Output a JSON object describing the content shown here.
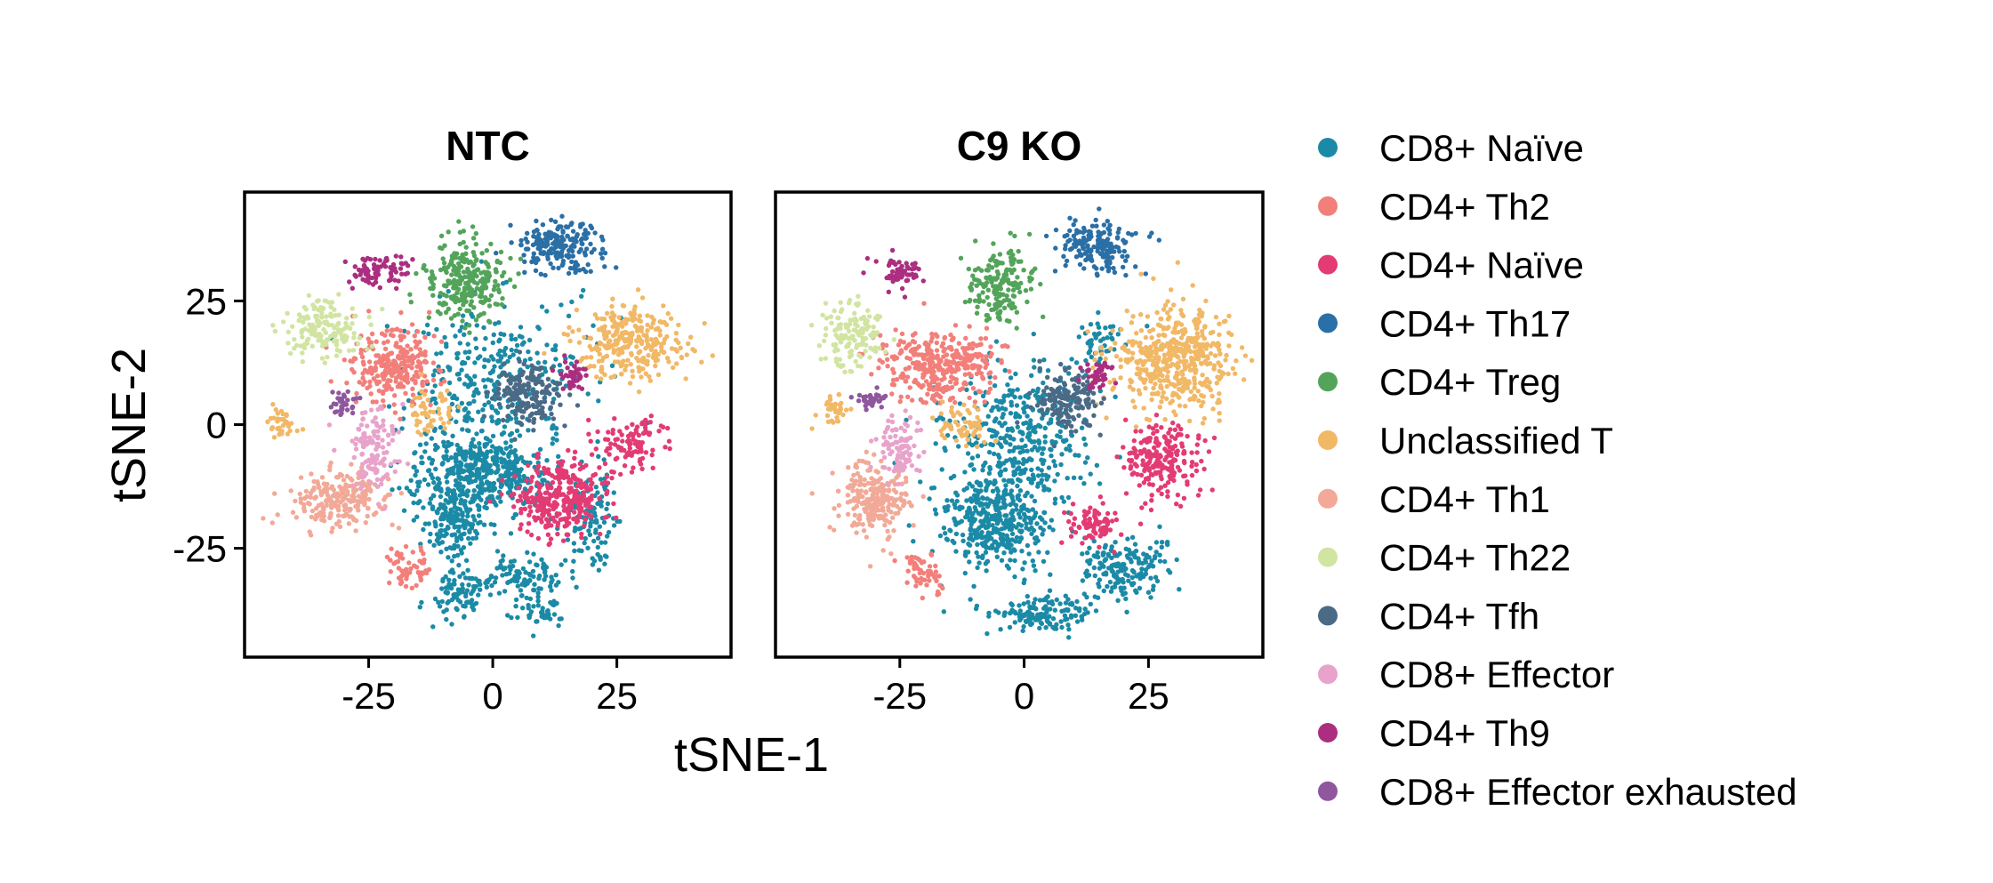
{
  "chart_data": {
    "type": "scatter",
    "xlabel": "tSNE-1",
    "ylabel": "tSNE-2",
    "xlim": [
      -50,
      48
    ],
    "ylim": [
      -47,
      47
    ],
    "xticks": [
      -25,
      0,
      25
    ],
    "yticks": [
      25,
      0,
      -25
    ],
    "xtick_labels": [
      "-25",
      "0",
      "25"
    ],
    "ytick_labels": [
      "25",
      "0",
      "-25"
    ],
    "legend_position": "right",
    "panels": [
      {
        "title": "NTC",
        "clusters": [
          {
            "type": "CD8+ Naïve",
            "center": [
              -3,
              -10
            ],
            "spread": [
              9,
              6
            ],
            "density": 1.0
          },
          {
            "type": "CD8+ Naïve",
            "center": [
              -8,
              -20
            ],
            "spread": [
              4,
              5
            ],
            "density": 0.6
          },
          {
            "type": "CD8+ Naïve",
            "center": [
              -7,
              -34
            ],
            "spread": [
              4,
              3
            ],
            "density": 0.5
          },
          {
            "type": "CD8+ Naïve",
            "center": [
              6,
              -31
            ],
            "spread": [
              5,
              3
            ],
            "density": 0.5
          },
          {
            "type": "CD8+ Naïve",
            "center": [
              10,
              -38
            ],
            "spread": [
              3,
              2
            ],
            "density": 0.3
          },
          {
            "type": "CD8+ Naïve",
            "center": [
              20,
              -20
            ],
            "spread": [
              3,
              7
            ],
            "density": 0.4
          },
          {
            "type": "CD8+ Naïve",
            "center": [
              0,
              10
            ],
            "spread": [
              12,
              10
            ],
            "density": 0.25
          },
          {
            "type": "CD4+ Th2",
            "center": [
              -20,
              12
            ],
            "spread": [
              6,
              5
            ],
            "density": 0.9
          },
          {
            "type": "CD4+ Th2",
            "center": [
              -17,
              -29
            ],
            "spread": [
              3,
              3
            ],
            "density": 0.3
          },
          {
            "type": "CD4+ Naïve",
            "center": [
              14,
              -15
            ],
            "spread": [
              6,
              5
            ],
            "density": 1.0
          },
          {
            "type": "CD4+ Naïve",
            "center": [
              28,
              -4
            ],
            "spread": [
              5,
              4
            ],
            "density": 0.4
          },
          {
            "type": "CD4+ Th17",
            "center": [
              13,
              36
            ],
            "spread": [
              6,
              3.5
            ],
            "density": 0.9
          },
          {
            "type": "CD4+ Treg",
            "center": [
              -5,
              29
            ],
            "spread": [
              5,
              5
            ],
            "density": 1.0
          },
          {
            "type": "Unclassified T",
            "center": [
              28,
              17
            ],
            "spread": [
              7,
              5
            ],
            "density": 0.8
          },
          {
            "type": "Unclassified T",
            "center": [
              -12,
              3
            ],
            "spread": [
              3,
              3
            ],
            "density": 0.3
          },
          {
            "type": "Unclassified T",
            "center": [
              -42,
              0
            ],
            "spread": [
              2,
              2
            ],
            "density": 0.15
          },
          {
            "type": "CD4+ Th1",
            "center": [
              -31,
              -15
            ],
            "spread": [
              6,
              4
            ],
            "density": 0.9
          },
          {
            "type": "CD4+ Th22",
            "center": [
              -34,
              19
            ],
            "spread": [
              5,
              4
            ],
            "density": 0.7
          },
          {
            "type": "CD4+ Tfh",
            "center": [
              7,
              6
            ],
            "spread": [
              5,
              4
            ],
            "density": 0.8
          },
          {
            "type": "CD8+ Effector",
            "center": [
              -24,
              -5
            ],
            "spread": [
              3,
              6
            ],
            "density": 0.6
          },
          {
            "type": "CD4+ Th9",
            "center": [
              -23,
              31
            ],
            "spread": [
              4,
              2
            ],
            "density": 0.7
          },
          {
            "type": "CD4+ Th9",
            "center": [
              16,
              10
            ],
            "spread": [
              2,
              2
            ],
            "density": 0.3
          },
          {
            "type": "CD8+ Effector exhausted",
            "center": [
              -30,
              4
            ],
            "spread": [
              2,
              1.5
            ],
            "density": 0.2
          }
        ]
      },
      {
        "title": "C9  KO",
        "clusters": [
          {
            "type": "CD8+ Naïve",
            "center": [
              -6,
              -20
            ],
            "spread": [
              7,
              6
            ],
            "density": 0.9
          },
          {
            "type": "CD8+ Naïve",
            "center": [
              3,
              -38
            ],
            "spread": [
              7,
              2.5
            ],
            "density": 0.7
          },
          {
            "type": "CD8+ Naïve",
            "center": [
              20,
              -29
            ],
            "spread": [
              6,
              4
            ],
            "density": 0.7
          },
          {
            "type": "CD8+ Naïve",
            "center": [
              -1,
              -3
            ],
            "spread": [
              10,
              10
            ],
            "density": 0.4
          },
          {
            "type": "CD8+ Naïve",
            "center": [
              15,
              17
            ],
            "spread": [
              3,
              3
            ],
            "density": 0.2
          },
          {
            "type": "CD4+ Th2",
            "center": [
              -17,
              12
            ],
            "spread": [
              8,
              5
            ],
            "density": 0.9
          },
          {
            "type": "CD4+ Th2",
            "center": [
              -20,
              -30
            ],
            "spread": [
              3,
              3
            ],
            "density": 0.3
          },
          {
            "type": "CD4+ Naïve",
            "center": [
              28,
              -7
            ],
            "spread": [
              5,
              5
            ],
            "density": 0.8
          },
          {
            "type": "CD4+ Naïve",
            "center": [
              14,
              -20
            ],
            "spread": [
              4,
              3
            ],
            "density": 0.5
          },
          {
            "type": "CD4+ Th17",
            "center": [
              14,
              36
            ],
            "spread": [
              5,
              4
            ],
            "density": 0.8
          },
          {
            "type": "CD4+ Treg",
            "center": [
              -5,
              28
            ],
            "spread": [
              4,
              5
            ],
            "density": 0.8
          },
          {
            "type": "Unclassified T",
            "center": [
              30,
              13
            ],
            "spread": [
              8,
              7
            ],
            "density": 0.9
          },
          {
            "type": "Unclassified T",
            "center": [
              -12,
              0
            ],
            "spread": [
              3,
              3
            ],
            "density": 0.4
          },
          {
            "type": "Unclassified T",
            "center": [
              -38,
              3
            ],
            "spread": [
              2,
              2
            ],
            "density": 0.15
          },
          {
            "type": "CD4+ Th1",
            "center": [
              -30,
              -15
            ],
            "spread": [
              5,
              5
            ],
            "density": 0.9
          },
          {
            "type": "CD4+ Th22",
            "center": [
              -35,
              18
            ],
            "spread": [
              4,
              5
            ],
            "density": 0.6
          },
          {
            "type": "CD4+ Tfh",
            "center": [
              9,
              5
            ],
            "spread": [
              4,
              4
            ],
            "density": 0.9
          },
          {
            "type": "CD8+ Effector",
            "center": [
              -25,
              -5
            ],
            "spread": [
              3,
              4
            ],
            "density": 0.6
          },
          {
            "type": "CD4+ Th9",
            "center": [
              -25,
              31
            ],
            "spread": [
              3,
              2
            ],
            "density": 0.5
          },
          {
            "type": "CD4+ Th9",
            "center": [
              15,
              10
            ],
            "spread": [
              2,
              2
            ],
            "density": 0.3
          },
          {
            "type": "CD8+ Effector exhausted",
            "center": [
              -31,
              5
            ],
            "spread": [
              2,
              1.5
            ],
            "density": 0.2
          }
        ]
      }
    ],
    "series": [
      {
        "name": "CD8+ Naïve",
        "color": "#1b8aa6"
      },
      {
        "name": "CD4+ Th2",
        "color": "#f27f7a"
      },
      {
        "name": "CD4+ Naïve",
        "color": "#e33b73"
      },
      {
        "name": "CD4+ Th17",
        "color": "#2a6fa5"
      },
      {
        "name": "CD4+ Treg",
        "color": "#53a45a"
      },
      {
        "name": "Unclassified T",
        "color": "#f1b866"
      },
      {
        "name": "CD4+ Th1",
        "color": "#f2a997"
      },
      {
        "name": "CD4+ Th22",
        "color": "#d1e4a1"
      },
      {
        "name": "CD4+ Tfh",
        "color": "#4b6a86"
      },
      {
        "name": "CD8+ Effector",
        "color": "#e8a3cb"
      },
      {
        "name": "CD4+ Th9",
        "color": "#ab2e80"
      },
      {
        "name": "CD8+ Effector exhausted",
        "color": "#8e579e"
      }
    ]
  }
}
